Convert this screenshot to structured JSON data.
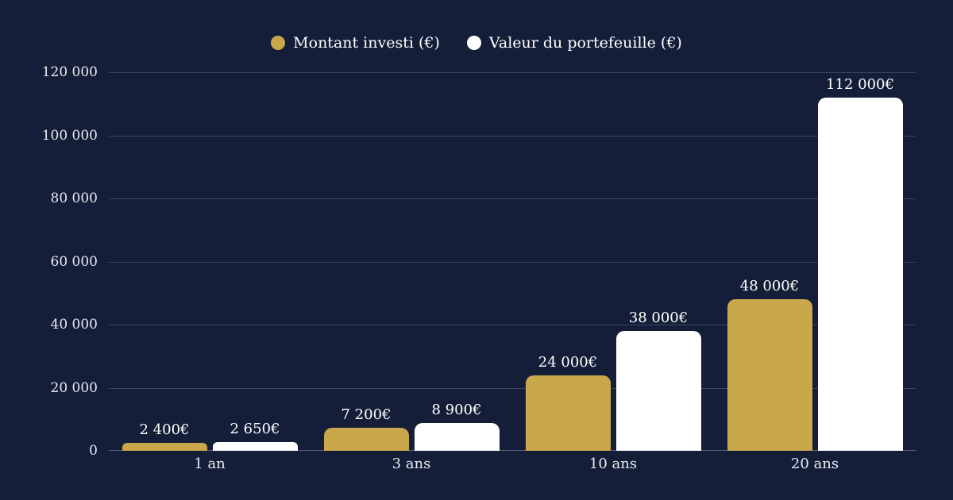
{
  "legend": [
    {
      "label": "Montant investi (€)",
      "color": "#c9a84c"
    },
    {
      "label": "Valeur du portefeuille (€)",
      "color": "#ffffff"
    }
  ],
  "y_axis": {
    "ticks": [
      "0",
      "20 000",
      "40 000",
      "60 000",
      "80 000",
      "100 000",
      "120 000"
    ]
  },
  "x_axis": {
    "ticks": [
      "1 an",
      "3 ans",
      "10 ans",
      "20 ans"
    ]
  },
  "bar_labels": {
    "invested": [
      "2 400€",
      "7 200€",
      "24 000€",
      "48 000€"
    ],
    "portfolio": [
      "2 650€",
      "8 900€",
      "38 000€",
      "112 000€"
    ]
  },
  "chart_data": {
    "type": "bar",
    "title": "",
    "categories": [
      "1 an",
      "3 ans",
      "10 ans",
      "20 ans"
    ],
    "series": [
      {
        "name": "Montant investi (€)",
        "color": "#c9a84c",
        "values": [
          2400,
          7200,
          24000,
          48000
        ]
      },
      {
        "name": "Valeur du portefeuille (€)",
        "color": "#ffffff",
        "values": [
          2650,
          8900,
          38000,
          112000
        ]
      }
    ],
    "xlabel": "",
    "ylabel": "",
    "ylim": [
      0,
      120000
    ],
    "yticks": [
      0,
      20000,
      40000,
      60000,
      80000,
      100000,
      120000
    ],
    "grid": true,
    "legend_position": "top-center",
    "data_labels": true
  }
}
